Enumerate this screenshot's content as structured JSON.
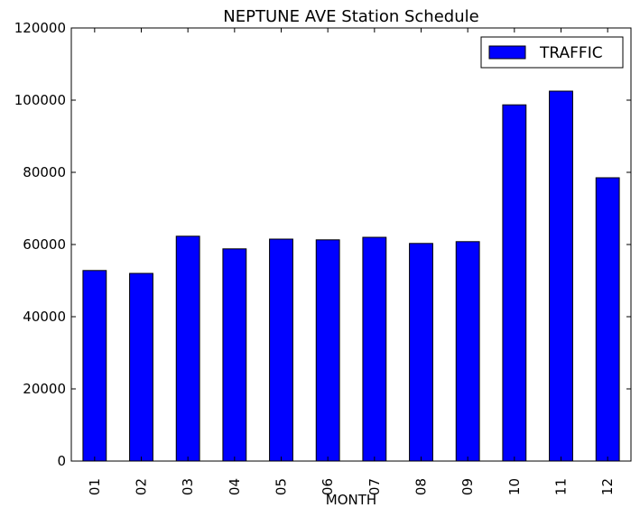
{
  "chart_data": {
    "type": "bar",
    "title": "NEPTUNE AVE Station Schedule",
    "xlabel": "MONTH",
    "ylabel": "",
    "categories": [
      "01",
      "02",
      "03",
      "04",
      "05",
      "06",
      "07",
      "08",
      "09",
      "10",
      "11",
      "12"
    ],
    "series": [
      {
        "name": "TRAFFIC",
        "color": "#0000ff",
        "values": [
          52800,
          52000,
          62300,
          58800,
          61500,
          61300,
          62000,
          60300,
          60800,
          98700,
          102500,
          78500
        ]
      }
    ],
    "ylim": [
      0,
      120000
    ],
    "yticks": [
      "0",
      "20000",
      "40000",
      "60000",
      "80000",
      "100000",
      "120000"
    ],
    "grid": false,
    "legend_position": "top-right"
  }
}
